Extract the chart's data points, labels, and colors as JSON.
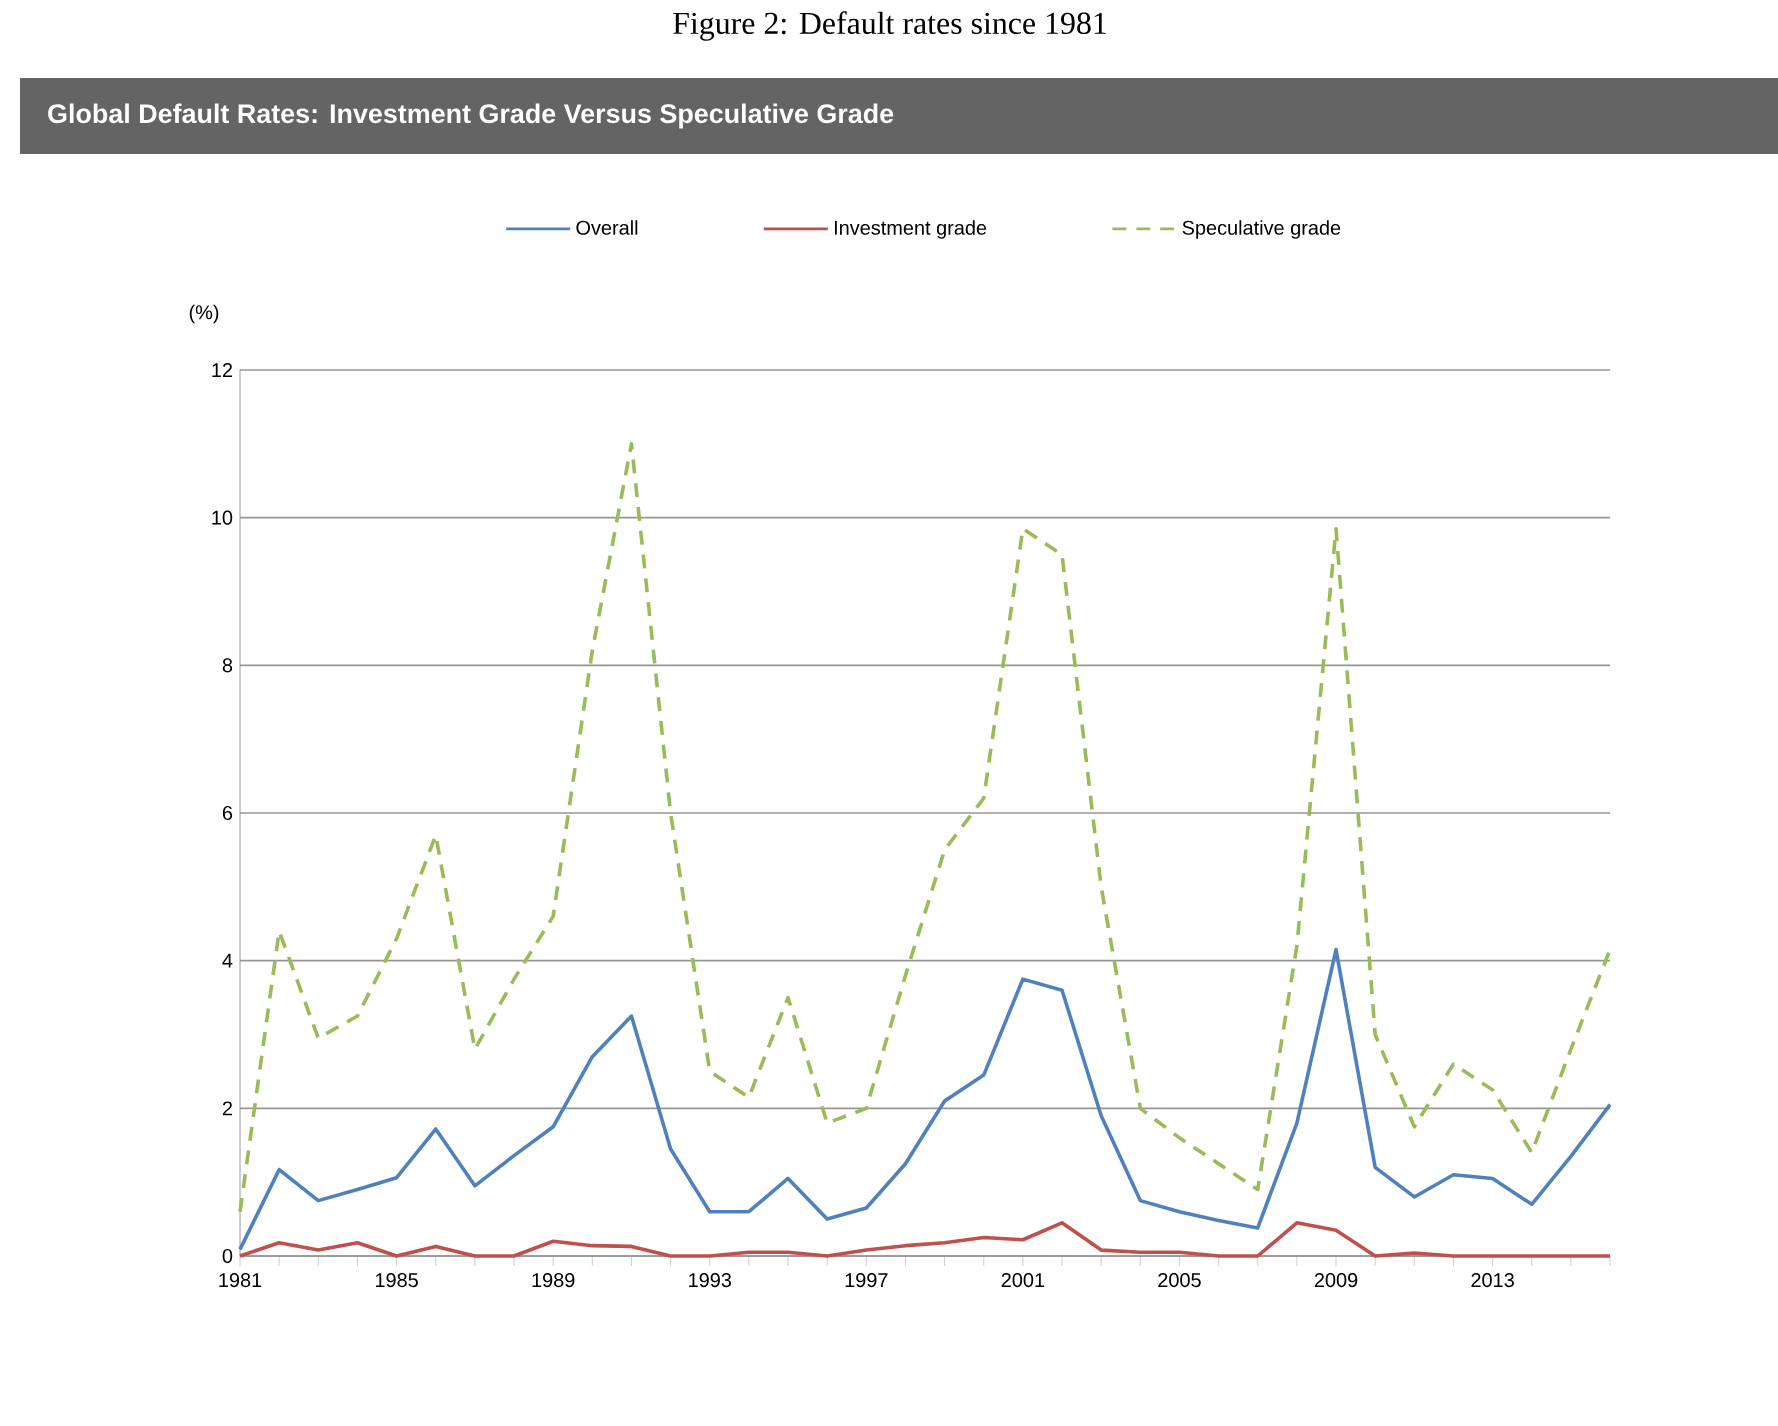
{
  "chart_data": {
    "type": "line",
    "title": "Figure 2: Default rates since 1981",
    "subtitle": "Global Default Rates:  Investment Grade Versus  Speculative Grade",
    "ylabel": "(%)",
    "x": [
      1981,
      1982,
      1983,
      1984,
      1985,
      1986,
      1987,
      1988,
      1989,
      1990,
      1991,
      1992,
      1993,
      1994,
      1995,
      1996,
      1997,
      1998,
      1999,
      2000,
      2001,
      2002,
      2003,
      2004,
      2005,
      2006,
      2007,
      2008,
      2009,
      2010,
      2011,
      2012,
      2013,
      2014,
      2015,
      2016
    ],
    "series": [
      {
        "name": "Overall",
        "color": "#4f81bd",
        "line_style": "solid",
        "values": [
          0.09,
          1.17,
          0.75,
          0.9,
          1.06,
          1.72,
          0.95,
          1.36,
          1.75,
          2.7,
          3.25,
          1.45,
          0.6,
          0.6,
          1.05,
          0.5,
          0.65,
          1.25,
          2.1,
          2.45,
          3.75,
          3.6,
          1.9,
          0.75,
          0.6,
          0.48,
          0.38,
          1.8,
          4.15,
          1.2,
          0.8,
          1.1,
          1.05,
          0.7,
          1.35,
          2.05
        ]
      },
      {
        "name": "Investment grade",
        "color": "#c0504d",
        "line_style": "solid",
        "values": [
          0,
          0.18,
          0.08,
          0.18,
          0,
          0.13,
          0,
          0,
          0.2,
          0.14,
          0.13,
          0,
          0,
          0.05,
          0.05,
          0,
          0.08,
          0.14,
          0.18,
          0.25,
          0.22,
          0.45,
          0.08,
          0.05,
          0.05,
          0,
          0,
          0.45,
          0.35,
          0,
          0.04,
          0,
          0,
          0,
          0,
          0
        ]
      },
      {
        "name": "Speculative grade",
        "color": "#9bbb59",
        "line_style": "dashed",
        "values": [
          0.6,
          4.4,
          2.95,
          3.25,
          4.3,
          5.7,
          2.8,
          3.75,
          4.6,
          8.2,
          11,
          6,
          2.5,
          2.15,
          3.5,
          1.8,
          2,
          3.8,
          5.5,
          6.2,
          9.85,
          9.5,
          5,
          2,
          1.6,
          1.25,
          0.9,
          4.2,
          9.85,
          3,
          1.75,
          2.6,
          2.25,
          1.4,
          2.8,
          4.15
        ]
      }
    ],
    "xlim": [
      1981,
      2016
    ],
    "xticks": [
      1981,
      {
        "value": 1982,
        "label": null
      },
      {
        "value": 1983,
        "label": null
      },
      {
        "value": 1984,
        "label": null
      },
      1985,
      {
        "value": 1986,
        "label": null
      },
      {
        "value": 1987,
        "label": null
      },
      {
        "value": 1988,
        "label": null
      },
      1989,
      {
        "value": 1990,
        "label": null
      },
      {
        "value": 1991,
        "label": null
      },
      {
        "value": 1992,
        "label": null
      },
      1993,
      {
        "value": 1994,
        "label": null
      },
      {
        "value": 1995,
        "label": null
      },
      {
        "value": 1996,
        "label": null
      },
      1997,
      {
        "value": 1998,
        "label": null
      },
      {
        "value": 1999,
        "label": null
      },
      {
        "value": 2000,
        "label": null
      },
      2001,
      {
        "value": 2002,
        "label": null
      },
      {
        "value": 2003,
        "label": null
      },
      {
        "value": 2004,
        "label": null
      },
      2005,
      {
        "value": 2006,
        "label": null
      },
      {
        "value": 2007,
        "label": null
      },
      {
        "value": 2008,
        "label": null
      },
      2009,
      {
        "value": 2010,
        "label": null
      },
      {
        "value": 2011,
        "label": null
      },
      {
        "value": 2012,
        "label": null
      },
      2013,
      {
        "value": 2014,
        "label": null
      },
      {
        "value": 2015,
        "label": null
      },
      {
        "value": 2016,
        "label": null
      }
    ],
    "ylim": [
      0,
      12
    ],
    "yticks": [
      0,
      2,
      4,
      6,
      8,
      10,
      12
    ],
    "grid": "y",
    "legend": "top",
    "marker": "none"
  }
}
